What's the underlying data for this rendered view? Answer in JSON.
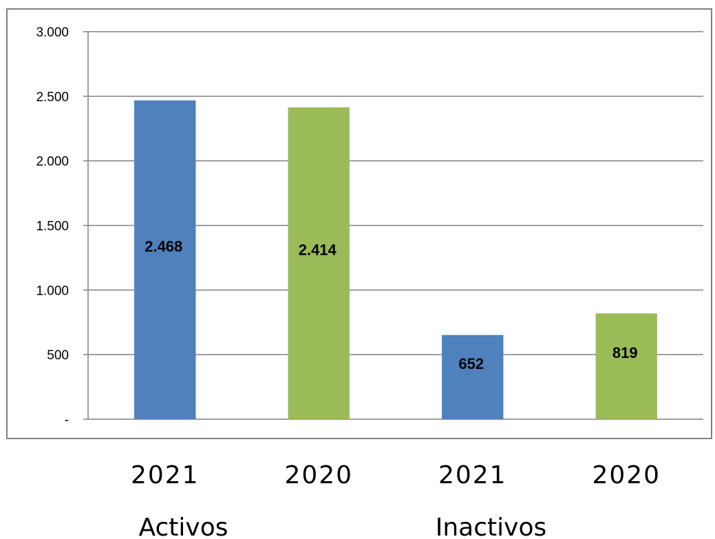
{
  "chart_data": {
    "type": "bar",
    "ylim": [
      0,
      3000
    ],
    "yticks": [
      0,
      500,
      1000,
      1500,
      2000,
      2500,
      3000
    ],
    "ytick_labels": [
      "-",
      "500",
      "1.000",
      "1.500",
      "2.000",
      "2.500",
      "3.000"
    ],
    "grid": true,
    "legend": "none",
    "groups": [
      "Activos",
      "Inactivos"
    ],
    "categories": [
      "2021",
      "2020",
      "2021",
      "2020"
    ],
    "category_group": [
      0,
      0,
      1,
      1
    ],
    "values": [
      2468,
      2414,
      652,
      819
    ],
    "data_labels": [
      "2.468",
      "2.414",
      "652",
      "819"
    ],
    "colors": [
      "#4f81bd",
      "#9bbb59",
      "#4f81bd",
      "#9bbb59"
    ]
  }
}
